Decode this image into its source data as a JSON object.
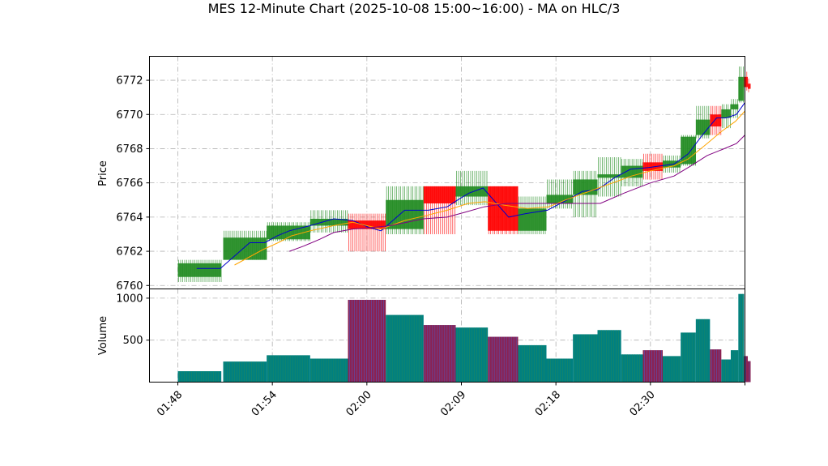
{
  "chart_data": {
    "type": "candlestick",
    "title": "MES 12-Minute Chart (2025-10-08 15:00~16:00) - MA on HLC/3",
    "price_panel": {
      "ylabel": "Price",
      "ylim": [
        6759.8,
        6773.4
      ],
      "yticks": [
        6760,
        6762,
        6764,
        6766,
        6768,
        6770,
        6772
      ],
      "ytick_labels": [
        "6760",
        "6762",
        "6764",
        "6766",
        "6768",
        "6770",
        "6772"
      ],
      "grid": true,
      "grid_style": "dashdot",
      "up_color": "#228B22",
      "down_color": "#FF0000",
      "ma_colors": [
        "#0000CD",
        "#FFA500",
        "#800080"
      ]
    },
    "volume_panel": {
      "ylabel": "Volume",
      "ylim": [
        0,
        1110
      ],
      "yticks": [
        500,
        1000
      ],
      "ytick_labels": [
        "500",
        "1000"
      ],
      "up_color": "#008080",
      "down_color": "#8B2252"
    },
    "xlim": [
      -3.0,
      60.0
    ],
    "x_ticks": [
      0,
      10,
      20,
      30,
      40,
      50,
      60
    ],
    "x_tick_labels": [
      "01:48",
      "01:54",
      "02:00",
      "02:09",
      "02:18",
      "02:30",
      ""
    ],
    "candles": [
      {
        "x": 0.0,
        "w": 4.6,
        "o": 6760.5,
        "h": 6761.5,
        "l": 6760.2,
        "c": 6761.3,
        "v": 130
      },
      {
        "x": 4.8,
        "w": 4.6,
        "o": 6761.5,
        "h": 6763.2,
        "l": 6761.5,
        "c": 6762.8,
        "v": 245
      },
      {
        "x": 9.4,
        "w": 4.6,
        "o": 6762.7,
        "h": 6763.7,
        "l": 6762.6,
        "c": 6763.5,
        "v": 320
      },
      {
        "x": 14.0,
        "w": 4.0,
        "o": 6763.5,
        "h": 6764.4,
        "l": 6763.1,
        "c": 6763.9,
        "v": 280
      },
      {
        "x": 18.0,
        "w": 4.0,
        "o": 6763.8,
        "h": 6764.2,
        "l": 6762.0,
        "c": 6763.3,
        "v": 980
      },
      {
        "x": 22.0,
        "w": 4.0,
        "o": 6763.3,
        "h": 6765.8,
        "l": 6763.0,
        "c": 6765.0,
        "v": 800
      },
      {
        "x": 26.0,
        "w": 3.4,
        "o": 6765.8,
        "h": 6765.8,
        "l": 6763.0,
        "c": 6764.8,
        "v": 680
      },
      {
        "x": 29.4,
        "w": 3.4,
        "o": 6765.2,
        "h": 6766.7,
        "l": 6764.7,
        "c": 6765.8,
        "v": 650
      },
      {
        "x": 32.8,
        "w": 3.2,
        "o": 6765.8,
        "h": 6765.8,
        "l": 6763.0,
        "c": 6763.2,
        "v": 540
      },
      {
        "x": 36.0,
        "w": 3.0,
        "o": 6763.2,
        "h": 6765.2,
        "l": 6763.0,
        "c": 6764.5,
        "v": 440
      },
      {
        "x": 39.0,
        "w": 2.8,
        "o": 6764.8,
        "h": 6766.2,
        "l": 6764.5,
        "c": 6765.3,
        "v": 280
      },
      {
        "x": 41.8,
        "w": 2.6,
        "o": 6765.3,
        "h": 6766.7,
        "l": 6764.0,
        "c": 6766.2,
        "v": 570
      },
      {
        "x": 44.4,
        "w": 2.5,
        "o": 6766.3,
        "h": 6767.5,
        "l": 6765.2,
        "c": 6766.5,
        "v": 620
      },
      {
        "x": 46.9,
        "w": 2.3,
        "o": 6766.3,
        "h": 6767.4,
        "l": 6765.8,
        "c": 6767.0,
        "v": 330
      },
      {
        "x": 49.2,
        "w": 2.1,
        "o": 6767.2,
        "h": 6767.7,
        "l": 6766.2,
        "c": 6766.7,
        "v": 380
      },
      {
        "x": 51.3,
        "w": 1.9,
        "o": 6766.9,
        "h": 6767.6,
        "l": 6766.6,
        "c": 6767.3,
        "v": 310
      },
      {
        "x": 53.2,
        "w": 1.6,
        "o": 6767.1,
        "h": 6768.8,
        "l": 6767.0,
        "c": 6768.7,
        "v": 590
      },
      {
        "x": 54.8,
        "w": 1.5,
        "o": 6768.8,
        "h": 6770.5,
        "l": 6768.6,
        "c": 6769.7,
        "v": 750
      },
      {
        "x": 56.3,
        "w": 1.2,
        "o": 6770.0,
        "h": 6770.5,
        "l": 6768.8,
        "c": 6769.3,
        "v": 390
      },
      {
        "x": 57.5,
        "w": 1.0,
        "o": 6769.8,
        "h": 6770.6,
        "l": 6769.2,
        "c": 6770.3,
        "v": 270
      },
      {
        "x": 58.5,
        "w": 0.8,
        "o": 6770.3,
        "h": 6770.9,
        "l": 6769.8,
        "c": 6770.6,
        "v": 380
      },
      {
        "x": 59.3,
        "w": 0.6,
        "o": 6770.8,
        "h": 6772.8,
        "l": 6770.7,
        "c": 6772.2,
        "v": 1050
      },
      {
        "x": 59.9,
        "w": 0.4,
        "o": 6772.2,
        "h": 6772.5,
        "l": 6771.4,
        "c": 6771.6,
        "v": 310
      },
      {
        "x": 60.3,
        "w": 0.3,
        "o": 6771.8,
        "h": 6772.1,
        "l": 6771.3,
        "c": 6771.5,
        "v": 250
      }
    ],
    "ma_series": [
      {
        "points": [
          [
            2.0,
            6761.0
          ],
          [
            4.5,
            6761.0
          ],
          [
            7.6,
            6762.5
          ],
          [
            9.2,
            6762.5
          ],
          [
            10.5,
            6762.9
          ],
          [
            11.8,
            6763.2
          ],
          [
            14.0,
            6763.5
          ],
          [
            16.5,
            6763.9
          ],
          [
            18.5,
            6763.8
          ],
          [
            20.2,
            6763.4
          ],
          [
            21.5,
            6763.2
          ],
          [
            24.0,
            6764.4
          ],
          [
            26.5,
            6764.4
          ],
          [
            28.5,
            6764.6
          ],
          [
            29.6,
            6765.0
          ],
          [
            30.8,
            6765.4
          ],
          [
            32.3,
            6765.7
          ],
          [
            35.0,
            6764.0
          ],
          [
            36.8,
            6764.2
          ],
          [
            39.1,
            6764.4
          ],
          [
            41.5,
            6765.1
          ],
          [
            42.8,
            6765.5
          ],
          [
            44.4,
            6765.6
          ],
          [
            46.2,
            6766.3
          ],
          [
            47.9,
            6766.8
          ],
          [
            49.8,
            6766.9
          ],
          [
            51.1,
            6767.0
          ],
          [
            52.5,
            6767.1
          ],
          [
            54.0,
            6767.7
          ],
          [
            55.5,
            6768.8
          ],
          [
            57.0,
            6769.8
          ],
          [
            58.0,
            6769.8
          ],
          [
            59.1,
            6770.0
          ],
          [
            60.0,
            6770.7
          ]
        ]
      },
      {
        "points": [
          [
            6.0,
            6761.2
          ],
          [
            9.0,
            6762.1
          ],
          [
            10.6,
            6762.5
          ],
          [
            12.0,
            6762.9
          ],
          [
            14.0,
            6763.2
          ],
          [
            16.5,
            6763.5
          ],
          [
            18.5,
            6763.7
          ],
          [
            20.0,
            6763.5
          ],
          [
            21.5,
            6763.3
          ],
          [
            24.0,
            6763.8
          ],
          [
            26.3,
            6764.1
          ],
          [
            28.5,
            6764.4
          ],
          [
            30.7,
            6764.8
          ],
          [
            32.5,
            6764.9
          ],
          [
            34.5,
            6764.7
          ],
          [
            37.0,
            6764.5
          ],
          [
            39.2,
            6764.6
          ],
          [
            41.0,
            6765.0
          ],
          [
            44.0,
            6765.6
          ],
          [
            46.0,
            6766.0
          ],
          [
            48.0,
            6766.4
          ],
          [
            50.0,
            6766.7
          ],
          [
            52.5,
            6767.0
          ],
          [
            54.0,
            6767.4
          ],
          [
            56.0,
            6768.3
          ],
          [
            57.5,
            6769.0
          ],
          [
            59.0,
            6769.6
          ],
          [
            60.0,
            6770.2
          ]
        ]
      },
      {
        "points": [
          [
            11.8,
            6762.0
          ],
          [
            13.3,
            6762.3
          ],
          [
            15.0,
            6762.7
          ],
          [
            16.5,
            6763.1
          ],
          [
            18.5,
            6763.3
          ],
          [
            20.8,
            6763.4
          ],
          [
            22.5,
            6763.5
          ],
          [
            26.0,
            6763.9
          ],
          [
            28.5,
            6764.0
          ],
          [
            30.5,
            6764.3
          ],
          [
            32.4,
            6764.6
          ],
          [
            34.8,
            6764.8
          ],
          [
            38.0,
            6764.8
          ],
          [
            40.2,
            6764.8
          ],
          [
            44.7,
            6764.8
          ],
          [
            47.2,
            6765.4
          ],
          [
            50.0,
            6766.0
          ],
          [
            52.5,
            6766.4
          ],
          [
            54.3,
            6767.0
          ],
          [
            56.0,
            6767.6
          ],
          [
            57.8,
            6768.0
          ],
          [
            59.1,
            6768.3
          ],
          [
            60.0,
            6768.8
          ]
        ]
      }
    ]
  }
}
